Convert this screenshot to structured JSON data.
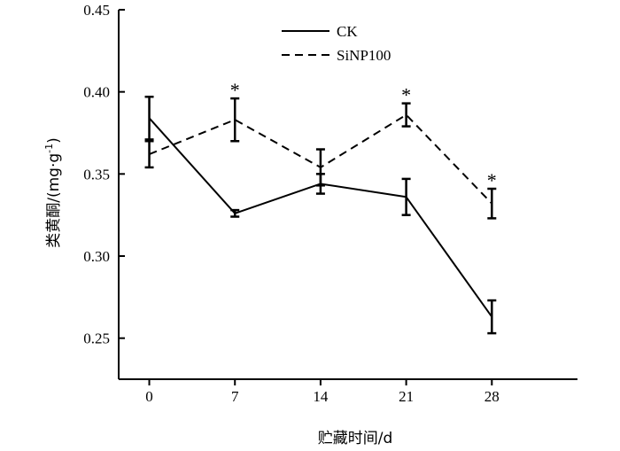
{
  "chart_data": {
    "type": "line",
    "xlabel": "贮藏时间/d",
    "ylabel": "类黄酮/(mg·g",
    "ylabel_sup": "-1",
    "ylabel_close": ")",
    "xlim": [
      -2.5,
      35
    ],
    "ylim": [
      0.225,
      0.45
    ],
    "categories": [
      "0",
      "7",
      "14",
      "21",
      "28"
    ],
    "x": [
      0,
      7,
      14,
      21,
      28
    ],
    "yticks": [
      0.25,
      0.3,
      0.35,
      0.4,
      0.45
    ],
    "ytick_labels": [
      "0.25",
      "0.30",
      "0.35",
      "0.40",
      "0.45"
    ],
    "grid": false,
    "legend_position": "top-center",
    "series": [
      {
        "name": "CK",
        "line_style": "solid",
        "values": [
          0.384,
          0.326,
          0.344,
          0.336,
          0.263
        ],
        "errors": [
          0.013,
          0.002,
          0.006,
          0.011,
          0.01
        ]
      },
      {
        "name": "SiNP100",
        "line_style": "dashed",
        "values": [
          0.362,
          0.383,
          0.354,
          0.386,
          0.332
        ],
        "errors": [
          0.008,
          0.013,
          0.011,
          0.007,
          0.009
        ]
      }
    ],
    "significance_markers": [
      {
        "x": 7,
        "label": "*"
      },
      {
        "x": 21,
        "label": "*"
      },
      {
        "x": 28,
        "label": "*"
      }
    ]
  }
}
